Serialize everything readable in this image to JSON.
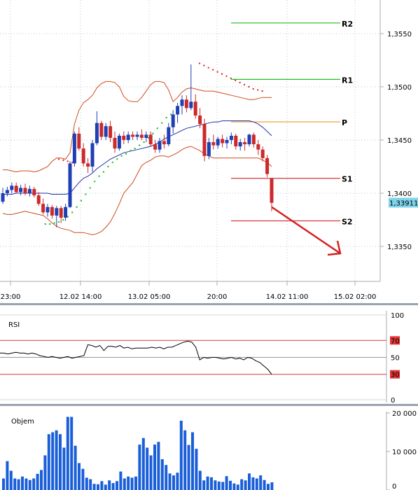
{
  "chart_data": [
    {
      "type": "candlestick",
      "title": "",
      "colors": {
        "up": "#1f3fb4",
        "down": "#cc2a2a",
        "bb": "#cf4a1a",
        "ma": "#1f2fa8",
        "sar": "#1fc02a",
        "pivot_p": "#f0a040",
        "pivot_r": "#22bb22",
        "pivot_s": "#d23a3a",
        "arrow": "#d42020",
        "grid": "#b8c4d0",
        "axis": "#a7aeb6",
        "price_box": "#7fd3ea"
      },
      "y_ticks": [
        "1,3550",
        "1,3500",
        "1,3450",
        "1,3400",
        "1,3350"
      ],
      "y_tick_values": [
        1.355,
        1.35,
        1.345,
        1.34,
        1.335
      ],
      "x_ticks": [
        "23:00",
        "12.02 14:00",
        "13.02 05:00",
        "20:00",
        "14.02 11:00",
        "15.02 02:00"
      ],
      "current_price_label": "1,33911",
      "current_price": 1.33911,
      "pivots": [
        {
          "label": "R2",
          "value": 1.356,
          "kind": "r"
        },
        {
          "label": "R1",
          "value": 1.3507,
          "kind": "r"
        },
        {
          "label": "P",
          "value": 1.3467,
          "kind": "p"
        },
        {
          "label": "S1",
          "value": 1.3414,
          "kind": "s"
        },
        {
          "label": "S2",
          "value": 1.3374,
          "kind": "s"
        }
      ],
      "candles": [
        [
          1.3392,
          1.3405,
          1.339,
          1.34
        ],
        [
          1.34,
          1.3406,
          1.3397,
          1.3403
        ],
        [
          1.3403,
          1.341,
          1.34,
          1.3407
        ],
        [
          1.3407,
          1.341,
          1.34,
          1.3401
        ],
        [
          1.3401,
          1.3408,
          1.3398,
          1.3405
        ],
        [
          1.3405,
          1.3409,
          1.3398,
          1.34
        ],
        [
          1.34,
          1.3407,
          1.3397,
          1.3404
        ],
        [
          1.3404,
          1.3406,
          1.3396,
          1.3398
        ],
        [
          1.3398,
          1.3401,
          1.3388,
          1.339
        ],
        [
          1.339,
          1.3395,
          1.338,
          1.3382
        ],
        [
          1.3382,
          1.339,
          1.3378,
          1.3387
        ],
        [
          1.3387,
          1.3389,
          1.3376,
          1.3379
        ],
        [
          1.3379,
          1.3388,
          1.3368,
          1.3386
        ],
        [
          1.3386,
          1.3388,
          1.3372,
          1.3377
        ],
        [
          1.3377,
          1.339,
          1.3374,
          1.3387
        ],
        [
          1.3387,
          1.343,
          1.3386,
          1.3428
        ],
        [
          1.3428,
          1.3458,
          1.3425,
          1.3456
        ],
        [
          1.3456,
          1.3462,
          1.344,
          1.3442
        ],
        [
          1.3442,
          1.3447,
          1.3425,
          1.3428
        ],
        [
          1.3428,
          1.3433,
          1.3419,
          1.3425
        ],
        [
          1.3425,
          1.345,
          1.342,
          1.3447
        ],
        [
          1.3447,
          1.3477,
          1.3445,
          1.3466
        ],
        [
          1.3466,
          1.3468,
          1.345,
          1.3453
        ],
        [
          1.3453,
          1.3466,
          1.345,
          1.3463
        ],
        [
          1.3463,
          1.3468,
          1.3448,
          1.3452
        ],
        [
          1.3452,
          1.3458,
          1.3438,
          1.3442
        ],
        [
          1.3442,
          1.3456,
          1.344,
          1.3454
        ],
        [
          1.3454,
          1.3458,
          1.3446,
          1.345
        ],
        [
          1.345,
          1.3458,
          1.3447,
          1.3455
        ],
        [
          1.3455,
          1.3458,
          1.345,
          1.3453
        ],
        [
          1.3453,
          1.3458,
          1.345,
          1.3455
        ],
        [
          1.3455,
          1.346,
          1.345,
          1.3452
        ],
        [
          1.3452,
          1.3458,
          1.3448,
          1.3455
        ],
        [
          1.3455,
          1.3458,
          1.3444,
          1.3446
        ],
        [
          1.3446,
          1.345,
          1.3438,
          1.3441
        ],
        [
          1.3441,
          1.3452,
          1.3438,
          1.3449
        ],
        [
          1.3449,
          1.3455,
          1.3442,
          1.3446
        ],
        [
          1.3446,
          1.3466,
          1.3444,
          1.3462
        ],
        [
          1.3462,
          1.3478,
          1.3456,
          1.3474
        ],
        [
          1.3474,
          1.3485,
          1.3466,
          1.3482
        ],
        [
          1.3482,
          1.3492,
          1.3474,
          1.3488
        ],
        [
          1.3488,
          1.3492,
          1.3476,
          1.348
        ],
        [
          1.348,
          1.3521,
          1.3478,
          1.3486
        ],
        [
          1.3486,
          1.3493,
          1.347,
          1.3473
        ],
        [
          1.3473,
          1.348,
          1.3461,
          1.3465
        ],
        [
          1.3465,
          1.347,
          1.343,
          1.3435
        ],
        [
          1.3435,
          1.3452,
          1.3432,
          1.3448
        ],
        [
          1.3448,
          1.3455,
          1.3441,
          1.3445
        ],
        [
          1.3445,
          1.3453,
          1.3442,
          1.3451
        ],
        [
          1.3451,
          1.3455,
          1.3443,
          1.3447
        ],
        [
          1.3447,
          1.3453,
          1.3442,
          1.345
        ],
        [
          1.345,
          1.3457,
          1.3446,
          1.3454
        ],
        [
          1.3454,
          1.3456,
          1.3441,
          1.3444
        ],
        [
          1.3444,
          1.3451,
          1.344,
          1.3448
        ],
        [
          1.3448,
          1.3452,
          1.344,
          1.3446
        ],
        [
          1.3446,
          1.3456,
          1.3444,
          1.3455
        ],
        [
          1.3455,
          1.3457,
          1.3443,
          1.3446
        ],
        [
          1.3446,
          1.345,
          1.3436,
          1.3441
        ],
        [
          1.3441,
          1.3444,
          1.343,
          1.3433
        ],
        [
          1.3433,
          1.3436,
          1.3415,
          1.3418
        ],
        [
          1.3414,
          1.3414,
          1.3383,
          1.3391
        ]
      ],
      "bb_upper": [
        1.3422,
        1.3422,
        1.3421,
        1.342,
        1.3421,
        1.3421,
        1.3421,
        1.342,
        1.3421,
        1.3423,
        1.3425,
        1.343,
        1.3433,
        1.3433,
        1.3432,
        1.3438,
        1.3465,
        1.3478,
        1.3485,
        1.3488,
        1.3492,
        1.3499,
        1.3503,
        1.3505,
        1.3505,
        1.3504,
        1.35,
        1.3491,
        1.3487,
        1.3486,
        1.3486,
        1.349,
        1.3496,
        1.3502,
        1.3505,
        1.3505,
        1.3504,
        1.3497,
        1.3486,
        1.349,
        1.3495,
        1.3498,
        1.3499,
        1.3498,
        1.3497,
        1.3496,
        1.3496,
        1.3496,
        1.3495,
        1.3494,
        1.3493,
        1.3492,
        1.3491,
        1.349,
        1.3489,
        1.3488,
        1.3488,
        1.3489,
        1.349,
        1.349,
        1.349
      ],
      "bb_lower": [
        1.3381,
        1.338,
        1.338,
        1.3381,
        1.3382,
        1.3383,
        1.3382,
        1.3381,
        1.338,
        1.3379,
        1.3376,
        1.3372,
        1.3369,
        1.3367,
        1.3366,
        1.3365,
        1.3363,
        1.3363,
        1.3363,
        1.3362,
        1.3361,
        1.3362,
        1.3364,
        1.3368,
        1.3373,
        1.3381,
        1.339,
        1.34,
        1.3405,
        1.341,
        1.3418,
        1.3426,
        1.3429,
        1.3431,
        1.3434,
        1.3435,
        1.3435,
        1.3434,
        1.3436,
        1.3438,
        1.3441,
        1.3443,
        1.3444,
        1.3442,
        1.344,
        1.3437,
        1.3435,
        1.3433,
        1.3433,
        1.3433,
        1.3433,
        1.3433,
        1.3433,
        1.3433,
        1.3433,
        1.3433,
        1.3433,
        1.3433,
        1.3431,
        1.3429,
        1.3425
      ],
      "ma": [
        1.3399,
        1.3399,
        1.3399,
        1.34,
        1.34,
        1.34,
        1.34,
        1.34,
        1.34,
        1.34,
        1.34,
        1.3399,
        1.3399,
        1.3399,
        1.3399,
        1.34,
        1.3405,
        1.341,
        1.3414,
        1.3416,
        1.3419,
        1.3423,
        1.3426,
        1.3429,
        1.3432,
        1.3434,
        1.3436,
        1.3438,
        1.3439,
        1.344,
        1.3441,
        1.3442,
        1.3443,
        1.3444,
        1.3446,
        1.3448,
        1.3451,
        1.3453,
        1.3455,
        1.3457,
        1.3459,
        1.3461,
        1.3462,
        1.3463,
        1.3464,
        1.3465,
        1.3466,
        1.3467,
        1.3467,
        1.3468,
        1.3468,
        1.3468,
        1.3468,
        1.3468,
        1.3468,
        1.3468,
        1.3467,
        1.3465,
        1.3462,
        1.3458,
        1.3454
      ],
      "sar": [
        null,
        null,
        null,
        null,
        null,
        null,
        null,
        null,
        null,
        null,
        null,
        null,
        1.3371,
        1.3371,
        1.3372,
        1.3373,
        1.3375,
        1.3378,
        1.3382,
        1.3387,
        1.3393,
        1.3399,
        1.3405,
        1.3411,
        1.3416,
        1.342,
        1.3425,
        1.3429,
        1.3432,
        1.3435,
        1.3437,
        1.344,
        1.3442,
        1.3445,
        1.3448,
        1.3452,
        1.3456,
        1.3461,
        1.3466,
        1.3471,
        1.3474,
        null,
        null,
        null,
        null,
        null,
        null,
        null,
        null,
        null,
        null,
        null,
        null,
        null,
        null,
        null,
        null,
        null,
        null,
        null,
        null
      ],
      "sar_offset": -16,
      "sar_high": [
        1.3432,
        1.3431,
        1.343,
        1.3429
      ],
      "sar_high_bars": [
        15,
        16,
        17,
        18
      ],
      "sar_high2": [
        1.3522,
        1.352,
        1.3518,
        1.3516,
        1.3514,
        1.3512,
        1.351,
        1.3508,
        1.3506,
        1.3504,
        1.3502,
        1.35,
        1.3498,
        1.3497,
        1.3496
      ],
      "sar_high2_start": 45,
      "rsi_panel": {
        "label": "RSI",
        "y_ticks": [
          "100",
          "70",
          "50",
          "30",
          "0"
        ],
        "levels": [
          70,
          30
        ],
        "values": [
          55,
          55,
          54,
          55,
          56,
          55,
          55,
          54,
          55,
          54,
          52,
          51,
          50,
          51,
          50,
          49,
          50,
          51,
          49,
          50,
          51,
          52,
          65,
          64,
          62,
          64,
          58,
          63,
          63,
          62,
          64,
          61,
          62,
          60,
          61,
          61,
          61,
          61,
          62,
          61,
          62,
          60,
          62,
          62,
          64,
          66,
          68,
          69,
          68,
          62,
          47,
          50,
          49,
          50,
          50,
          49,
          48,
          49,
          50,
          48,
          49,
          47,
          50,
          49,
          46,
          44,
          40,
          36,
          30
        ]
      },
      "volume_panel": {
        "label": "Objem",
        "y_ticks": [
          "20 000",
          "10 000",
          "0"
        ],
        "values": [
          3000,
          7500,
          5000,
          3000,
          2800,
          3500,
          3000,
          2600,
          3000,
          4200,
          5200,
          9000,
          14500,
          15000,
          15500,
          14500,
          11000,
          19000,
          19000,
          11500,
          7000,
          5500,
          3200,
          2800,
          1600,
          1500,
          2300,
          1400,
          2500,
          1800,
          2300,
          4800,
          3000,
          3500,
          3200,
          3500,
          11800,
          13500,
          11000,
          9000,
          11800,
          12500,
          8000,
          6500,
          4300,
          3800,
          4500,
          18000,
          15500,
          11700,
          15000,
          10700,
          5000,
          2500,
          3500,
          3300,
          2500,
          2200,
          2100,
          3600,
          2400,
          1700,
          1400,
          2800,
          2500,
          4300,
          3300,
          3000,
          3800,
          2600,
          1600,
          2000
        ]
      }
    }
  ]
}
